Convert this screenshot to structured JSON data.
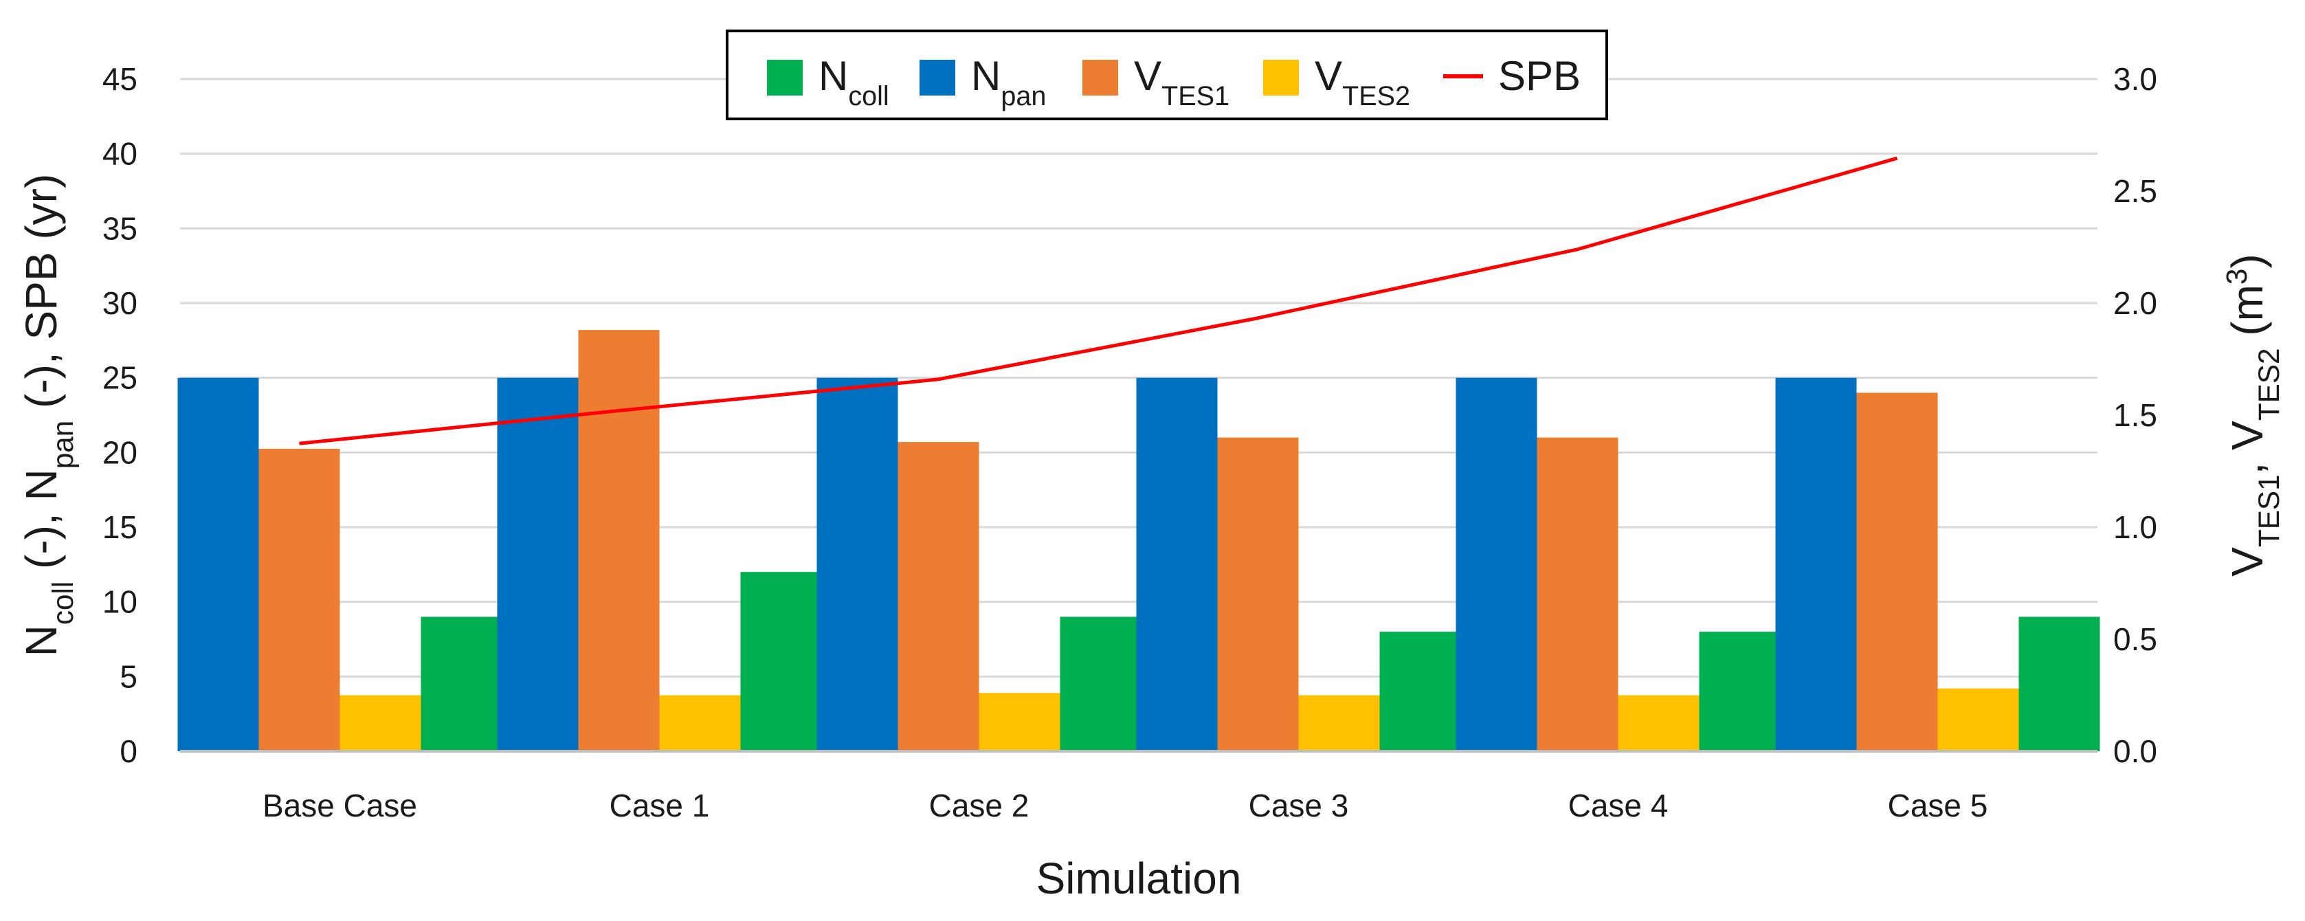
{
  "chart_data": {
    "type": "bar",
    "xlabel": "Simulation",
    "categories": [
      "Base Case",
      "Case 1",
      "Case 2",
      "Case 3",
      "Case 4",
      "Case 5"
    ],
    "ylabel_left": {
      "parts": [
        {
          "t": "N",
          "s": ""
        },
        {
          "t": "coll",
          "s": "sub"
        },
        {
          "t": " (-), N",
          "s": ""
        },
        {
          "t": "pan",
          "s": "sub"
        },
        {
          "t": " (-), SPB (yr)",
          "s": ""
        }
      ]
    },
    "ylabel_right": {
      "parts": [
        {
          "t": "V",
          "s": ""
        },
        {
          "t": "TES1",
          "s": "sub"
        },
        {
          "t": ", V",
          "s": ""
        },
        {
          "t": "TES2",
          "s": "sub"
        },
        {
          "t": " (m",
          "s": ""
        },
        {
          "t": "3",
          "s": "sup"
        },
        {
          "t": ")",
          "s": ""
        }
      ]
    },
    "ylim_left": [
      0,
      45
    ],
    "yticks_left": [
      "0",
      "5",
      "10",
      "15",
      "20",
      "25",
      "30",
      "35",
      "40",
      "45"
    ],
    "ylim_right": [
      0,
      3
    ],
    "yticks_right": [
      "0.0",
      "0.5",
      "1.0",
      "1.5",
      "2.0",
      "2.5",
      "3.0"
    ],
    "grid": true,
    "legend_position": "top-center",
    "series": [
      {
        "name": "N_pan",
        "axis": "left",
        "kind": "bar",
        "color": "#0070C0",
        "values": [
          25,
          25,
          25,
          25,
          25,
          25
        ]
      },
      {
        "name": "V_TES1",
        "axis": "right",
        "kind": "bar",
        "color": "#ED7D31",
        "values": [
          1.35,
          1.88,
          1.38,
          1.4,
          1.4,
          1.6
        ]
      },
      {
        "name": "V_TES2",
        "axis": "right",
        "kind": "bar",
        "color": "#FFC000",
        "values": [
          0.25,
          0.25,
          0.26,
          0.25,
          0.25,
          0.28
        ]
      },
      {
        "name": "N_coll",
        "axis": "left",
        "kind": "bar",
        "color": "#00B050",
        "values": [
          9,
          12,
          9,
          8,
          8,
          9
        ]
      },
      {
        "name": "SPB",
        "axis": "left",
        "kind": "line",
        "color": "#FF0000",
        "values": [
          20.6,
          22.8,
          24.9,
          29.0,
          33.6,
          39.7
        ]
      }
    ],
    "legend": [
      {
        "series": "N_coll",
        "color": "#00B050",
        "kind": "box",
        "parts": [
          {
            "t": "N",
            "s": ""
          },
          {
            "t": "coll",
            "s": "sub"
          }
        ]
      },
      {
        "series": "N_pan",
        "color": "#0070C0",
        "kind": "box",
        "parts": [
          {
            "t": "N",
            "s": ""
          },
          {
            "t": "pan",
            "s": "sub"
          }
        ]
      },
      {
        "series": "V_TES1",
        "color": "#ED7D31",
        "kind": "box",
        "parts": [
          {
            "t": "V",
            "s": ""
          },
          {
            "t": "TES1",
            "s": "sub"
          }
        ]
      },
      {
        "series": "V_TES2",
        "color": "#FFC000",
        "kind": "box",
        "parts": [
          {
            "t": "V",
            "s": ""
          },
          {
            "t": "TES2",
            "s": "sub"
          }
        ]
      },
      {
        "series": "SPB",
        "color": "#FF0000",
        "kind": "line",
        "parts": [
          {
            "t": "SPB",
            "s": ""
          }
        ]
      }
    ]
  }
}
